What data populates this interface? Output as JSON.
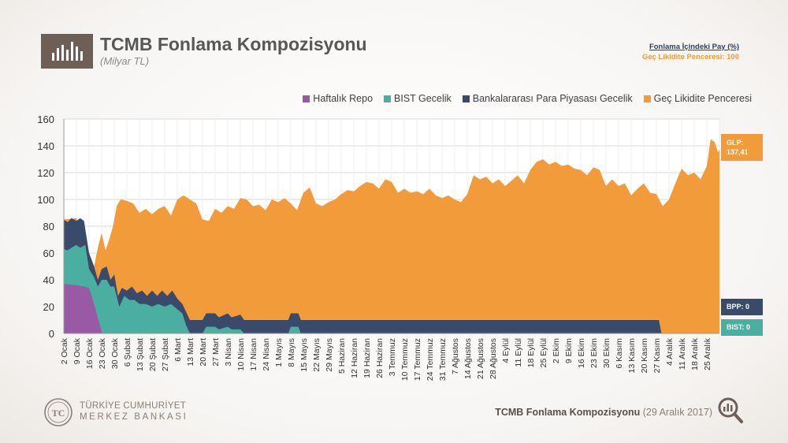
{
  "header": {
    "title": "TCMB Fonlama Kompozisyonu",
    "subtitle": "(Milyar TL)"
  },
  "share_panel": {
    "title": "Fonlama İçindeki Pay (%)",
    "value_text": "Geç Likidite Penceresi: 100"
  },
  "badges": {
    "glp_label": "GLP:",
    "glp_value": "137,41",
    "bpp": "BPP: 0",
    "bist": "BIST: 0"
  },
  "footer": {
    "logo_line1": "TÜRKİYE CUMHURİYET",
    "logo_line2": "MERKEZ BANKASI",
    "title": "TCMB Fonlama Kompozisyonu",
    "date": "(29 Aralık 2017)"
  },
  "colors": {
    "repo": "#9a59a4",
    "bist": "#4aaea0",
    "bpp": "#3a4a6b",
    "glp": "#f29b3b"
  },
  "chart_data": {
    "type": "area",
    "stacked": true,
    "title": "TCMB Fonlama Kompozisyonu",
    "ylabel": "Milyar TL",
    "ylim": [
      0,
      160
    ],
    "yticks": [
      0,
      20,
      40,
      60,
      80,
      100,
      120,
      140,
      160
    ],
    "x_tick_labels": [
      "2 Ocak",
      "9 Ocak",
      "16 Ocak",
      "23 Ocak",
      "30 Ocak",
      "6 Şubat",
      "13 Şubat",
      "20 Şubat",
      "27 Şubat",
      "6 Mart",
      "13 Mart",
      "20 Mart",
      "27 Mart",
      "3 Nisan",
      "10 Nisan",
      "17 Nisan",
      "24 Nisan",
      "1 Mayıs",
      "8 Mayıs",
      "15 Mayıs",
      "22 Mayıs",
      "29 Mayıs",
      "5 Haziran",
      "12 Haziran",
      "19 Haziran",
      "26 Haziran",
      "3 Temmuz",
      "10 Temmuz",
      "17 Temmuz",
      "24 Temmuz",
      "31 Temmuz",
      "7 Ağustos",
      "14 Ağustos",
      "21 Ağustos",
      "28 Ağustos",
      "4 Eylül",
      "11 Eylül",
      "18 Eylül",
      "25 Eylül",
      "2 Ekim",
      "9 Ekim",
      "16 Ekim",
      "23 Ekim",
      "30 Ekim",
      "6 Kasım",
      "13 Kasım",
      "20 Kasım",
      "27 Kasım",
      "4 Aralık",
      "11 Aralık",
      "18 Aralık",
      "25 Aralık"
    ],
    "x_index_range": [
      0,
      52
    ],
    "legend": [
      "Haftalık Repo",
      "BIST Gecelik",
      "Bankalararası Para Piyasası Gecelik",
      "Geç Likidite Penceresi"
    ],
    "legend_position": "top-right",
    "series": [
      {
        "name": "Haftalık Repo",
        "points": [
          [
            0,
            37
          ],
          [
            1,
            36
          ],
          [
            1.6,
            35
          ],
          [
            2,
            34
          ],
          [
            2.4,
            22
          ],
          [
            2.8,
            8
          ],
          [
            3.05,
            0
          ],
          [
            52,
            0
          ]
        ]
      },
      {
        "name": "BIST Gecelik",
        "points": [
          [
            0,
            63
          ],
          [
            0.3,
            62
          ],
          [
            0.6,
            64
          ],
          [
            1,
            66
          ],
          [
            1.3,
            64
          ],
          [
            1.7,
            66
          ],
          [
            2,
            48
          ],
          [
            2.4,
            42
          ],
          [
            2.7,
            35
          ],
          [
            3,
            40
          ],
          [
            3.4,
            40
          ],
          [
            3.7,
            35
          ],
          [
            4,
            35
          ],
          [
            4.4,
            20
          ],
          [
            4.8,
            28
          ],
          [
            5.2,
            25
          ],
          [
            5.6,
            25
          ],
          [
            6,
            22
          ],
          [
            6.5,
            22
          ],
          [
            7,
            20
          ],
          [
            7.5,
            22
          ],
          [
            8,
            20
          ],
          [
            8.5,
            22
          ],
          [
            9,
            18
          ],
          [
            9.4,
            15
          ],
          [
            9.7,
            6
          ],
          [
            10,
            0
          ],
          [
            11,
            0
          ],
          [
            11.3,
            5
          ],
          [
            12,
            5
          ],
          [
            12.3,
            3
          ],
          [
            13,
            5
          ],
          [
            13.3,
            3
          ],
          [
            14,
            3
          ],
          [
            14.3,
            0
          ],
          [
            17.8,
            0
          ],
          [
            18,
            5
          ],
          [
            18.6,
            5
          ],
          [
            18.8,
            0
          ],
          [
            52,
            0
          ]
        ]
      },
      {
        "name": "Bankalararası Para Piyasası Gecelik",
        "points": [
          [
            0,
            85
          ],
          [
            0.3,
            83
          ],
          [
            0.6,
            86
          ],
          [
            1,
            84
          ],
          [
            1.3,
            86
          ],
          [
            1.6,
            84
          ],
          [
            2,
            60
          ],
          [
            2.4,
            50
          ],
          [
            2.7,
            40
          ],
          [
            3,
            48
          ],
          [
            3.4,
            50
          ],
          [
            3.7,
            40
          ],
          [
            4,
            44
          ],
          [
            4.3,
            28
          ],
          [
            4.6,
            34
          ],
          [
            5,
            32
          ],
          [
            5.4,
            35
          ],
          [
            5.8,
            30
          ],
          [
            6.2,
            32
          ],
          [
            6.6,
            28
          ],
          [
            7,
            32
          ],
          [
            7.4,
            28
          ],
          [
            7.8,
            32
          ],
          [
            8.2,
            28
          ],
          [
            8.6,
            32
          ],
          [
            9,
            26
          ],
          [
            9.4,
            22
          ],
          [
            9.7,
            16
          ],
          [
            10,
            10
          ],
          [
            11,
            10
          ],
          [
            11.3,
            15
          ],
          [
            12,
            15
          ],
          [
            12.3,
            12
          ],
          [
            13,
            15
          ],
          [
            13.3,
            12
          ],
          [
            14,
            14
          ],
          [
            14.3,
            10
          ],
          [
            17,
            10
          ],
          [
            17.8,
            10
          ],
          [
            18,
            15
          ],
          [
            18.6,
            15
          ],
          [
            18.8,
            10
          ],
          [
            30,
            10
          ],
          [
            40,
            10
          ],
          [
            47.2,
            10
          ],
          [
            47.4,
            0
          ],
          [
            52,
            0
          ]
        ]
      },
      {
        "name": "Geç Likidite Penceresi",
        "points": [
          [
            0,
            85
          ],
          [
            1,
            86
          ],
          [
            2,
            60
          ],
          [
            2.4,
            50
          ],
          [
            2.7,
            64
          ],
          [
            3,
            75
          ],
          [
            3.3,
            62
          ],
          [
            3.6,
            70
          ],
          [
            3.9,
            80
          ],
          [
            4.2,
            95
          ],
          [
            4.5,
            100
          ],
          [
            5,
            99
          ],
          [
            5.5,
            97
          ],
          [
            6,
            90
          ],
          [
            6.5,
            93
          ],
          [
            7,
            89
          ],
          [
            7.5,
            93
          ],
          [
            8,
            95
          ],
          [
            8.5,
            88
          ],
          [
            9,
            100
          ],
          [
            9.5,
            103
          ],
          [
            10,
            100
          ],
          [
            10.5,
            97
          ],
          [
            11,
            85
          ],
          [
            11.5,
            84
          ],
          [
            12,
            93
          ],
          [
            12.5,
            90
          ],
          [
            13,
            95
          ],
          [
            13.5,
            93
          ],
          [
            14,
            101
          ],
          [
            14.5,
            100
          ],
          [
            15,
            95
          ],
          [
            15.5,
            96
          ],
          [
            16,
            92
          ],
          [
            16.5,
            100
          ],
          [
            17,
            98
          ],
          [
            17.5,
            101
          ],
          [
            18,
            97
          ],
          [
            18.5,
            92
          ],
          [
            19,
            105
          ],
          [
            19.5,
            109
          ],
          [
            20,
            97
          ],
          [
            20.5,
            95
          ],
          [
            21,
            98
          ],
          [
            21.5,
            100
          ],
          [
            22,
            104
          ],
          [
            22.5,
            107
          ],
          [
            23,
            106
          ],
          [
            23.5,
            110
          ],
          [
            24,
            113
          ],
          [
            24.5,
            112
          ],
          [
            25,
            108
          ],
          [
            25.5,
            115
          ],
          [
            26,
            113
          ],
          [
            26.5,
            105
          ],
          [
            27,
            108
          ],
          [
            27.5,
            105
          ],
          [
            28,
            106
          ],
          [
            28.5,
            104
          ],
          [
            29,
            108
          ],
          [
            29.5,
            103
          ],
          [
            30,
            101
          ],
          [
            30.5,
            103
          ],
          [
            31,
            100
          ],
          [
            31.5,
            98
          ],
          [
            32,
            104
          ],
          [
            32.5,
            118
          ],
          [
            33,
            115
          ],
          [
            33.5,
            117
          ],
          [
            34,
            112
          ],
          [
            34.5,
            115
          ],
          [
            35,
            110
          ],
          [
            35.5,
            114
          ],
          [
            36,
            118
          ],
          [
            36.5,
            112
          ],
          [
            37,
            122
          ],
          [
            37.5,
            128
          ],
          [
            38,
            130
          ],
          [
            38.5,
            126
          ],
          [
            39,
            128
          ],
          [
            39.5,
            125
          ],
          [
            40,
            126
          ],
          [
            40.5,
            123
          ],
          [
            41,
            122
          ],
          [
            41.5,
            118
          ],
          [
            42,
            124
          ],
          [
            42.5,
            122
          ],
          [
            43,
            110
          ],
          [
            43.5,
            115
          ],
          [
            44,
            110
          ],
          [
            44.5,
            112
          ],
          [
            45,
            103
          ],
          [
            45.5,
            108
          ],
          [
            46,
            112
          ],
          [
            46.5,
            105
          ],
          [
            47,
            104
          ],
          [
            47.5,
            95
          ],
          [
            48,
            100
          ],
          [
            48.5,
            112
          ],
          [
            49,
            123
          ],
          [
            49.5,
            118
          ],
          [
            50,
            120
          ],
          [
            50.5,
            115
          ],
          [
            51,
            125
          ],
          [
            51.3,
            145
          ],
          [
            51.6,
            143
          ],
          [
            51.9,
            135
          ],
          [
            52,
            137.41
          ]
        ]
      }
    ]
  }
}
